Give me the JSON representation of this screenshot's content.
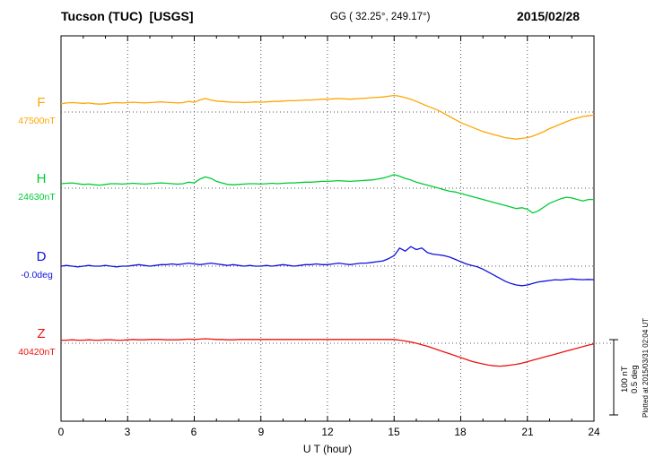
{
  "header": {
    "station": "Tucson (TUC)  [USGS]",
    "coords": "GG ( 32.25°, 249.17°)",
    "date": "2015/02/28"
  },
  "footer_note": "Plotted at 2015/03/31 02:04 UT",
  "scale_bar": {
    "labels": [
      "100 nT",
      "0.5 deg"
    ]
  },
  "axis": {
    "x_label": "U T (hour)",
    "x_ticks": [
      "0",
      "3",
      "6",
      "9",
      "12",
      "15",
      "18",
      "21",
      "24"
    ],
    "x_range": [
      0,
      24
    ]
  },
  "chart_data": {
    "type": "line",
    "title": "Tucson (TUC) [USGS] magnetogram 2015/02/28",
    "xlabel": "U T (hour)",
    "x_range": [
      0,
      24
    ],
    "x_step_hours": 0.25,
    "grid": "dotted",
    "scale": {
      "nT_per_division": 100,
      "deg_per_division": 0.5
    },
    "series": [
      {
        "name": "F",
        "units": "nT",
        "baseline_value": 47500,
        "baseline_label": "47500nT",
        "color": "#ffa500",
        "offsets": [
          11,
          12,
          12.5,
          12,
          11.5,
          12,
          11,
          10.5,
          11,
          12,
          12.5,
          12,
          12.5,
          13,
          12.5,
          12,
          12.5,
          13,
          13.5,
          13,
          12.5,
          12,
          12.5,
          14,
          13,
          16,
          18,
          16,
          14.5,
          14,
          13.5,
          13,
          13,
          12.5,
          13,
          13.5,
          13,
          13.5,
          14,
          14,
          14.5,
          15,
          15,
          15.5,
          16,
          16,
          16.5,
          17,
          17,
          17.5,
          18,
          17.5,
          17,
          17.5,
          18,
          18.5,
          19,
          19.5,
          20,
          21,
          22,
          21,
          19,
          17,
          14,
          11,
          8,
          5,
          2,
          -2,
          -6,
          -10,
          -14,
          -17,
          -20,
          -23,
          -26,
          -28,
          -30,
          -32,
          -34,
          -35,
          -36,
          -35,
          -34,
          -32,
          -29,
          -26,
          -22,
          -19,
          -16,
          -13,
          -10,
          -8,
          -6,
          -5,
          -4
        ]
      },
      {
        "name": "H",
        "units": "nT",
        "baseline_value": 24630,
        "baseline_label": "24630nT",
        "color": "#00cc33",
        "offsets": [
          6,
          6.5,
          7,
          6,
          5,
          5.5,
          4.5,
          4,
          5,
          6,
          6,
          5.5,
          6,
          6.5,
          6,
          5.5,
          6,
          6.5,
          7,
          6.5,
          6,
          5.5,
          6,
          8,
          7,
          12,
          15,
          13,
          9,
          7,
          5,
          4.5,
          5,
          5.5,
          6,
          6,
          5.5,
          6,
          6.5,
          6,
          6.5,
          7,
          7,
          7.5,
          8,
          8,
          8.5,
          9,
          9,
          9.5,
          10,
          9.5,
          9,
          9.5,
          10,
          10.5,
          11,
          12,
          13.5,
          15.5,
          18,
          16,
          13,
          11,
          8,
          6,
          4,
          2,
          0,
          -2,
          -4,
          -5,
          -7,
          -9,
          -11,
          -13,
          -15,
          -17,
          -19,
          -21,
          -23,
          -25,
          -27,
          -26,
          -28,
          -33,
          -30,
          -25,
          -20,
          -17,
          -14,
          -12,
          -13,
          -15,
          -17,
          -15,
          -15
        ]
      },
      {
        "name": "D",
        "units": "deg",
        "baseline_value": -0.0,
        "baseline_label": "-0.0deg",
        "color": "#1111dd",
        "offsets": [
          0,
          0.005,
          0,
          -0.005,
          0,
          0.005,
          0,
          0,
          0.005,
          0,
          -0.005,
          0,
          0,
          0.005,
          0.01,
          0.005,
          0,
          0.005,
          0.01,
          0.01,
          0.015,
          0.01,
          0.015,
          0.02,
          0.015,
          0.01,
          0.015,
          0.02,
          0.015,
          0.01,
          0.005,
          0.01,
          0.005,
          0,
          0.005,
          0,
          0,
          0.005,
          0,
          0.005,
          0.01,
          0.005,
          0,
          0.005,
          0.01,
          0.01,
          0.015,
          0.01,
          0.01,
          0.015,
          0.02,
          0.015,
          0.01,
          0.015,
          0.02,
          0.02,
          0.025,
          0.03,
          0.035,
          0.05,
          0.07,
          0.12,
          0.1,
          0.13,
          0.11,
          0.12,
          0.09,
          0.08,
          0.075,
          0.07,
          0.06,
          0.045,
          0.03,
          0.015,
          0.005,
          -0.005,
          -0.02,
          -0.04,
          -0.06,
          -0.08,
          -0.1,
          -0.115,
          -0.125,
          -0.13,
          -0.125,
          -0.115,
          -0.105,
          -0.1,
          -0.095,
          -0.09,
          -0.092,
          -0.088,
          -0.085,
          -0.088,
          -0.09,
          -0.088,
          -0.09
        ]
      },
      {
        "name": "Z",
        "units": "nT",
        "baseline_value": 40420,
        "baseline_label": "40420nT",
        "color": "#ee1111",
        "offsets": [
          4,
          4,
          4.5,
          4,
          4,
          4.5,
          4,
          4,
          4.5,
          4.5,
          4,
          4,
          4.5,
          5,
          4.5,
          4.5,
          5,
          5,
          5,
          4.5,
          4.5,
          4.5,
          5,
          5.5,
          5,
          5.5,
          6,
          5.5,
          5,
          5,
          4.5,
          4.5,
          5,
          5,
          5,
          5,
          5,
          5,
          5,
          5,
          5,
          5,
          5,
          5,
          5,
          5,
          5,
          5,
          5,
          5,
          5,
          5,
          5,
          5,
          5,
          5,
          5,
          5,
          5,
          5,
          5,
          4,
          3,
          1.5,
          0,
          -2,
          -4,
          -6.5,
          -9,
          -11.5,
          -14,
          -16.5,
          -19,
          -21.5,
          -24,
          -26,
          -27.5,
          -29,
          -30,
          -30.5,
          -30,
          -29,
          -28,
          -26.5,
          -24.5,
          -22.5,
          -20.5,
          -18.5,
          -16.5,
          -14.5,
          -12.5,
          -10.5,
          -8.5,
          -6.5,
          -4.5,
          -2.5,
          -1
        ]
      }
    ]
  }
}
